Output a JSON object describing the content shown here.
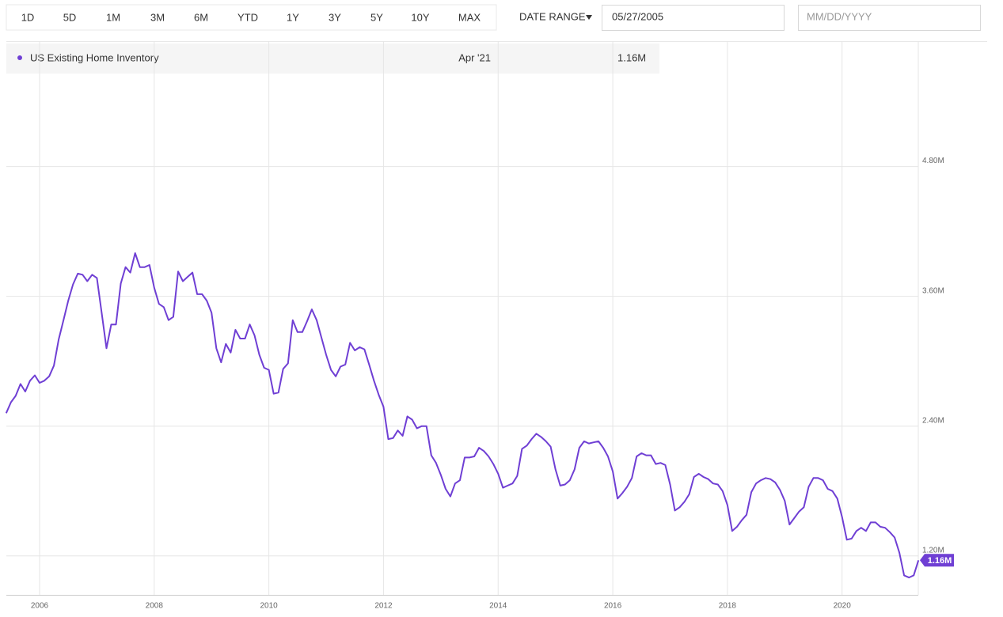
{
  "toolbar": {
    "ranges": [
      "1D",
      "5D",
      "1M",
      "3M",
      "6M",
      "YTD",
      "1Y",
      "3Y",
      "5Y",
      "10Y",
      "MAX"
    ],
    "date_range_label": "DATE RANGE",
    "start_date": "05/27/2005",
    "end_placeholder": "MM/DD/YYYY"
  },
  "chart_data": {
    "type": "line",
    "readout": {
      "date": "Apr '21"
    },
    "x": [
      "2005-05",
      "2005-06",
      "2005-07",
      "2005-08",
      "2005-09",
      "2005-10",
      "2005-11",
      "2005-12",
      "2006-01",
      "2006-02",
      "2006-03",
      "2006-04",
      "2006-05",
      "2006-06",
      "2006-07",
      "2006-08",
      "2006-09",
      "2006-10",
      "2006-11",
      "2006-12",
      "2007-01",
      "2007-02",
      "2007-03",
      "2007-04",
      "2007-05",
      "2007-06",
      "2007-07",
      "2007-08",
      "2007-09",
      "2007-10",
      "2007-11",
      "2007-12",
      "2008-01",
      "2008-02",
      "2008-03",
      "2008-04",
      "2008-05",
      "2008-06",
      "2008-07",
      "2008-08",
      "2008-09",
      "2008-10",
      "2008-11",
      "2008-12",
      "2009-01",
      "2009-02",
      "2009-03",
      "2009-04",
      "2009-05",
      "2009-06",
      "2009-07",
      "2009-08",
      "2009-09",
      "2009-10",
      "2009-11",
      "2009-12",
      "2010-01",
      "2010-02",
      "2010-03",
      "2010-04",
      "2010-05",
      "2010-06",
      "2010-07",
      "2010-08",
      "2010-09",
      "2010-10",
      "2010-11",
      "2010-12",
      "2011-01",
      "2011-02",
      "2011-03",
      "2011-04",
      "2011-05",
      "2011-06",
      "2011-07",
      "2011-08",
      "2011-09",
      "2011-10",
      "2011-11",
      "2011-12",
      "2012-01",
      "2012-02",
      "2012-03",
      "2012-04",
      "2012-05",
      "2012-06",
      "2012-07",
      "2012-08",
      "2012-09",
      "2012-10",
      "2012-11",
      "2012-12",
      "2013-01",
      "2013-02",
      "2013-03",
      "2013-04",
      "2013-05",
      "2013-06",
      "2013-07",
      "2013-08",
      "2013-09",
      "2013-10",
      "2013-11",
      "2013-12",
      "2014-01",
      "2014-02",
      "2014-03",
      "2014-04",
      "2014-05",
      "2014-06",
      "2014-07",
      "2014-08",
      "2014-09",
      "2014-10",
      "2014-11",
      "2014-12",
      "2015-01",
      "2015-02",
      "2015-03",
      "2015-04",
      "2015-05",
      "2015-06",
      "2015-07",
      "2015-08",
      "2015-09",
      "2015-10",
      "2015-11",
      "2015-12",
      "2016-01",
      "2016-02",
      "2016-03",
      "2016-04",
      "2016-05",
      "2016-06",
      "2016-07",
      "2016-08",
      "2016-09",
      "2016-10",
      "2016-11",
      "2016-12",
      "2017-01",
      "2017-02",
      "2017-03",
      "2017-04",
      "2017-05",
      "2017-06",
      "2017-07",
      "2017-08",
      "2017-09",
      "2017-10",
      "2017-11",
      "2017-12",
      "2018-01",
      "2018-02",
      "2018-03",
      "2018-04",
      "2018-05",
      "2018-06",
      "2018-07",
      "2018-08",
      "2018-09",
      "2018-10",
      "2018-11",
      "2018-12",
      "2019-01",
      "2019-02",
      "2019-03",
      "2019-04",
      "2019-05",
      "2019-06",
      "2019-07",
      "2019-08",
      "2019-09",
      "2019-10",
      "2019-11",
      "2019-12",
      "2020-01",
      "2020-02",
      "2020-03",
      "2020-04",
      "2020-05",
      "2020-06",
      "2020-07",
      "2020-08",
      "2020-09",
      "2020-10",
      "2020-11",
      "2020-12",
      "2021-01",
      "2021-02",
      "2021-03",
      "2021-04"
    ],
    "series": [
      {
        "name": "US Existing Home Inventory",
        "color": "#6f3fd4",
        "values": [
          2.52,
          2.62,
          2.68,
          2.79,
          2.72,
          2.82,
          2.87,
          2.8,
          2.82,
          2.86,
          2.96,
          3.2,
          3.38,
          3.56,
          3.71,
          3.81,
          3.8,
          3.74,
          3.8,
          3.77,
          3.45,
          3.12,
          3.34,
          3.34,
          3.72,
          3.87,
          3.82,
          4.0,
          3.87,
          3.87,
          3.89,
          3.68,
          3.53,
          3.5,
          3.38,
          3.41,
          3.83,
          3.74,
          3.78,
          3.82,
          3.62,
          3.62,
          3.56,
          3.45,
          3.12,
          2.99,
          3.16,
          3.08,
          3.29,
          3.21,
          3.21,
          3.34,
          3.24,
          3.06,
          2.94,
          2.92,
          2.7,
          2.71,
          2.93,
          2.98,
          3.38,
          3.27,
          3.27,
          3.37,
          3.48,
          3.38,
          3.22,
          3.06,
          2.92,
          2.86,
          2.95,
          2.97,
          3.17,
          3.1,
          3.13,
          3.11,
          2.97,
          2.82,
          2.69,
          2.58,
          2.28,
          2.29,
          2.36,
          2.31,
          2.49,
          2.46,
          2.38,
          2.4,
          2.4,
          2.13,
          2.06,
          1.95,
          1.82,
          1.75,
          1.87,
          1.9,
          2.11,
          2.11,
          2.12,
          2.2,
          2.17,
          2.12,
          2.05,
          1.96,
          1.83,
          1.85,
          1.87,
          1.94,
          2.19,
          2.22,
          2.28,
          2.33,
          2.3,
          2.26,
          2.21,
          2.0,
          1.85,
          1.86,
          1.9,
          2.0,
          2.2,
          2.26,
          2.24,
          2.25,
          2.26,
          2.2,
          2.12,
          1.98,
          1.73,
          1.78,
          1.84,
          1.92,
          2.12,
          2.15,
          2.13,
          2.13,
          2.05,
          2.06,
          2.04,
          1.86,
          1.62,
          1.65,
          1.7,
          1.77,
          1.93,
          1.96,
          1.93,
          1.91,
          1.87,
          1.86,
          1.8,
          1.67,
          1.43,
          1.47,
          1.53,
          1.58,
          1.79,
          1.87,
          1.9,
          1.92,
          1.91,
          1.88,
          1.81,
          1.71,
          1.49,
          1.55,
          1.61,
          1.65,
          1.84,
          1.92,
          1.92,
          1.9,
          1.82,
          1.8,
          1.73,
          1.56,
          1.35,
          1.36,
          1.43,
          1.46,
          1.43,
          1.51,
          1.51,
          1.47,
          1.46,
          1.42,
          1.37,
          1.23,
          1.02,
          1.0,
          1.02,
          1.16
        ],
        "end_label": {
          "value": 1.16,
          "label": "1.16M"
        }
      }
    ],
    "xlim": [
      2005.42,
      2021.33
    ],
    "xticks": [
      2006,
      2008,
      2010,
      2012,
      2014,
      2016,
      2018,
      2020
    ],
    "ylim": [
      0.84,
      5.96
    ],
    "yticks": [
      {
        "value": 1.2,
        "label": "1.20M"
      },
      {
        "value": 2.4,
        "label": "2.40M"
      },
      {
        "value": 3.6,
        "label": "3.60M"
      },
      {
        "value": 4.8,
        "label": "4.80M"
      }
    ],
    "grid": true
  }
}
